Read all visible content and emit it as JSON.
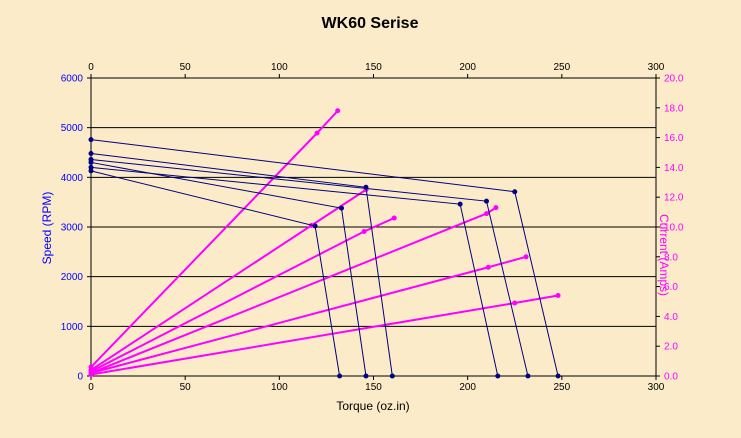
{
  "chart_data": {
    "type": "line",
    "title": "WK60 Serise",
    "xlabel": "Torque (oz.in)",
    "ylabel": "Speed (RPM)",
    "y2label": "Current (Amps)",
    "xlim": [
      0,
      300
    ],
    "ylim": [
      0,
      6000
    ],
    "y2lim": [
      0,
      20
    ],
    "x_ticks": [
      "0",
      "50",
      "100",
      "150",
      "200",
      "250",
      "300"
    ],
    "y_ticks": [
      "0",
      "1000",
      "2000",
      "3000",
      "4000",
      "5000",
      "6000"
    ],
    "y2_ticks": [
      "0.0",
      "2.0",
      "4.0",
      "6.0",
      "8.0",
      "10.0",
      "12.0",
      "14.0",
      "16.0",
      "18.0",
      "20.0"
    ],
    "grid": true,
    "colors": {
      "speed": "#000080",
      "current": "#ff00ff",
      "background": "#fcebc9",
      "left_axis_text": "#0000ff"
    },
    "speed_series": [
      {
        "x": [
          0,
          119,
          132
        ],
        "y": [
          4130,
          3020,
          0
        ]
      },
      {
        "x": [
          0,
          146,
          160
        ],
        "y": [
          4480,
          3800,
          0
        ]
      },
      {
        "x": [
          0,
          133,
          146
        ],
        "y": [
          4300,
          3380,
          0
        ]
      },
      {
        "x": [
          0,
          196,
          216
        ],
        "y": [
          4200,
          3460,
          0
        ]
      },
      {
        "x": [
          0,
          210,
          232
        ],
        "y": [
          4360,
          3520,
          0
        ]
      },
      {
        "x": [
          0,
          225,
          248
        ],
        "y": [
          4760,
          3710,
          0
        ]
      }
    ],
    "current_series": [
      {
        "x": [
          0,
          120,
          131
        ],
        "y": [
          0.6,
          16.3,
          17.8
        ]
      },
      {
        "x": [
          0,
          117,
          146
        ],
        "y": [
          0.4,
          10.1,
          12.5
        ]
      },
      {
        "x": [
          0,
          145,
          161
        ],
        "y": [
          0.3,
          9.7,
          10.6
        ]
      },
      {
        "x": [
          0,
          210,
          215
        ],
        "y": [
          0.2,
          10.9,
          11.3
        ]
      },
      {
        "x": [
          0,
          211,
          231
        ],
        "y": [
          0.2,
          7.3,
          8.0
        ]
      },
      {
        "x": [
          0,
          225,
          248
        ],
        "y": [
          0.1,
          4.9,
          5.4
        ]
      }
    ]
  }
}
